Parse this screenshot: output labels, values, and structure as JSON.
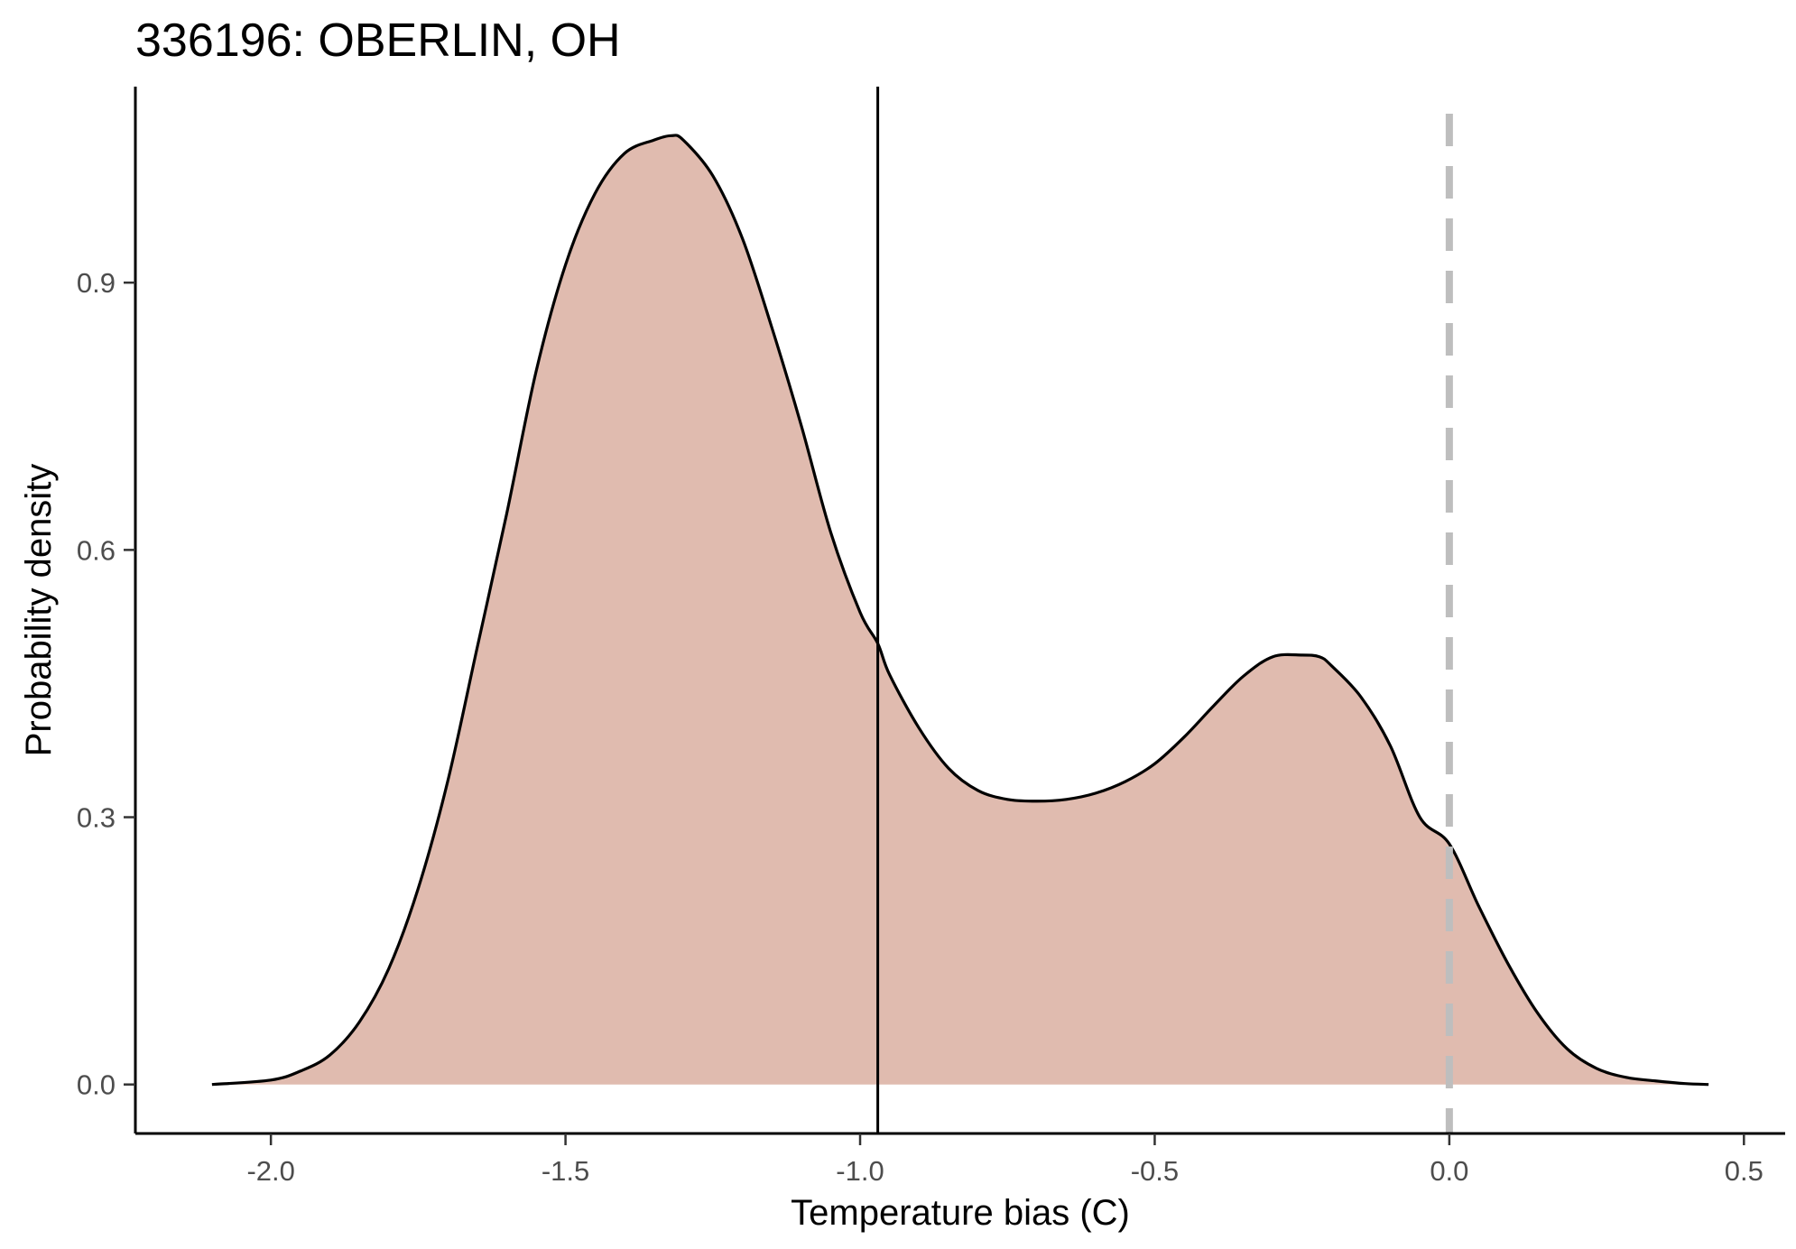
{
  "chart_data": {
    "type": "area",
    "title": "336196: OBERLIN, OH",
    "xlabel": "Temperature bias (C)",
    "ylabel": "Probability density",
    "xlim": [
      -2.23,
      0.57
    ],
    "ylim": [
      -0.055,
      1.12
    ],
    "x_ticks": [
      -2.0,
      -1.5,
      -1.0,
      -0.5,
      0.0,
      0.5
    ],
    "x_tick_labels": [
      "-2.0",
      "-1.5",
      "-1.0",
      "-0.5",
      "0.0",
      "0.5"
    ],
    "y_ticks": [
      0.0,
      0.3,
      0.6,
      0.9
    ],
    "y_tick_labels": [
      "0.0",
      "0.3",
      "0.6",
      "0.9"
    ],
    "grid": false,
    "series": [
      {
        "x": [
          -2.1,
          -2.0,
          -1.95,
          -1.9,
          -1.85,
          -1.8,
          -1.75,
          -1.7,
          -1.65,
          -1.6,
          -1.55,
          -1.5,
          -1.45,
          -1.4,
          -1.35,
          -1.32,
          -1.3,
          -1.25,
          -1.2,
          -1.15,
          -1.1,
          -1.05,
          -1.0,
          -0.97,
          -0.95,
          -0.9,
          -0.85,
          -0.8,
          -0.75,
          -0.7,
          -0.65,
          -0.6,
          -0.55,
          -0.5,
          -0.45,
          -0.4,
          -0.35,
          -0.3,
          -0.25,
          -0.22,
          -0.2,
          -0.15,
          -0.1,
          -0.05,
          0.0,
          0.05,
          0.1,
          0.15,
          0.2,
          0.25,
          0.3,
          0.35,
          0.4,
          0.44
        ],
        "y": [
          0.0,
          0.005,
          0.015,
          0.033,
          0.07,
          0.13,
          0.22,
          0.34,
          0.49,
          0.64,
          0.8,
          0.92,
          1.0,
          1.045,
          1.06,
          1.065,
          1.06,
          1.02,
          0.95,
          0.85,
          0.74,
          0.62,
          0.53,
          0.495,
          0.46,
          0.4,
          0.355,
          0.33,
          0.32,
          0.318,
          0.32,
          0.327,
          0.34,
          0.36,
          0.39,
          0.425,
          0.458,
          0.48,
          0.482,
          0.48,
          0.47,
          0.435,
          0.38,
          0.3,
          0.27,
          0.2,
          0.135,
          0.08,
          0.04,
          0.018,
          0.008,
          0.004,
          0.001,
          0.0
        ],
        "fill_color": "#e0bbaf",
        "line_color": "#000000"
      }
    ],
    "reference_lines": [
      {
        "x": -0.97,
        "style": "solid",
        "color": "#000000"
      },
      {
        "x": 0.0,
        "style": "dashed",
        "color": "#bebebe"
      }
    ]
  }
}
